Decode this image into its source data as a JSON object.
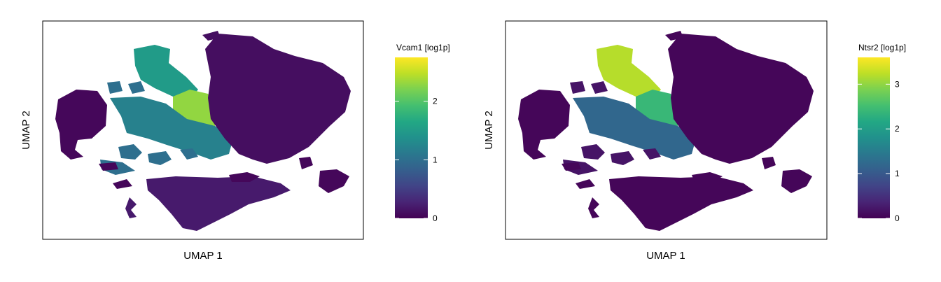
{
  "colors": {
    "viridis": [
      "#440154",
      "#482475",
      "#414487",
      "#355f8d",
      "#2a788e",
      "#21918c",
      "#22a884",
      "#44bf70",
      "#7ad151",
      "#bddf26",
      "#fde725"
    ],
    "background": "#ffffff",
    "frame": "#000000"
  },
  "chart_data": [
    {
      "type": "heatmap",
      "title": "",
      "xlabel": "UMAP 1",
      "ylabel": "UMAP 2",
      "legend": {
        "title": "Vcam1 [log1p]",
        "range": [
          0,
          2.75
        ],
        "ticks": [
          0,
          1,
          2
        ],
        "placement": "right"
      },
      "grid": false,
      "clusters": [
        {
          "name": "top-left-arm",
          "value": 1.5
        },
        {
          "name": "upper-middle-hot",
          "value": 2.3
        },
        {
          "name": "middle-band",
          "value": 1.2
        },
        {
          "name": "small-islands-center",
          "value": 1.0
        },
        {
          "name": "left-cluster",
          "value": 0.05
        },
        {
          "name": "top-right-mass",
          "value": 0.1
        },
        {
          "name": "bottom-mass",
          "value": 0.2
        },
        {
          "name": "right-small-clusters",
          "value": 0.05
        }
      ]
    },
    {
      "type": "heatmap",
      "title": "",
      "xlabel": "UMAP 1",
      "ylabel": "UMAP 2",
      "legend": {
        "title": "Ntsr2 [log1p]",
        "range": [
          0,
          3.6
        ],
        "ticks": [
          0,
          1,
          2,
          3
        ],
        "placement": "right"
      },
      "grid": false,
      "clusters": [
        {
          "name": "top-left-arm",
          "value": 3.2
        },
        {
          "name": "upper-middle-hot",
          "value": 2.4
        },
        {
          "name": "middle-band",
          "value": 1.2
        },
        {
          "name": "small-islands-center",
          "value": 0.2
        },
        {
          "name": "left-cluster",
          "value": 0.05
        },
        {
          "name": "top-right-mass",
          "value": 0.05
        },
        {
          "name": "bottom-mass",
          "value": 0.05
        },
        {
          "name": "right-small-clusters",
          "value": 0.05
        }
      ]
    }
  ]
}
